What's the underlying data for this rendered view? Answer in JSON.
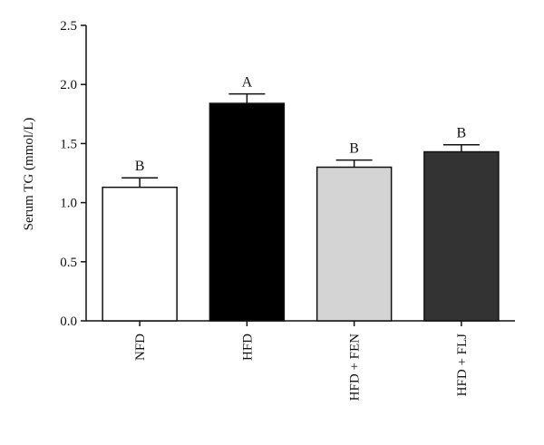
{
  "chart_data": {
    "type": "bar",
    "title": "",
    "xlabel": "",
    "ylabel": "Serum TG (mmol/L)",
    "ylim": [
      0,
      2.5
    ],
    "yticks": [
      "0.0",
      "0.5",
      "1.0",
      "1.5",
      "2.0",
      "2.5"
    ],
    "grid": false,
    "categories": [
      "NFD",
      "HFD",
      "HFD + FEN",
      "HFD + FLJ"
    ],
    "values": [
      1.13,
      1.84,
      1.3,
      1.43
    ],
    "errors": [
      0.08,
      0.08,
      0.06,
      0.06
    ],
    "significance_letters": [
      "B",
      "A",
      "B",
      "B"
    ],
    "bar_colors": [
      "#ffffff",
      "#000000",
      "#d4d4d4",
      "#333333"
    ]
  }
}
